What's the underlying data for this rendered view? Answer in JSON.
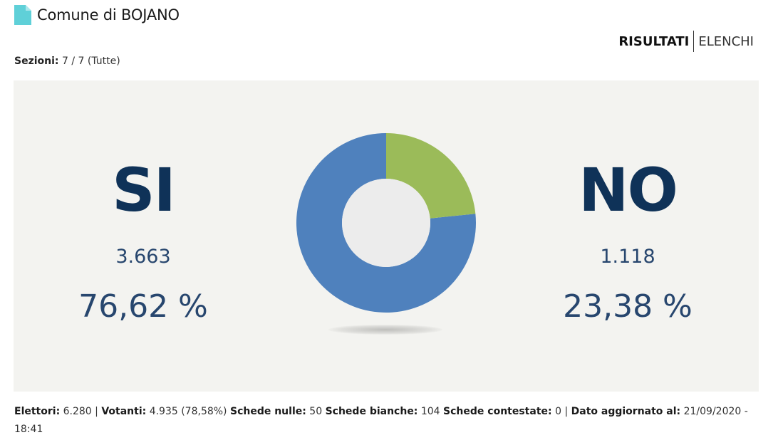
{
  "header": {
    "title": "Comune di BOJANO",
    "icon": "document-icon",
    "icon_color": "#5fd0d8"
  },
  "tabs": {
    "active": "RISULTATI",
    "other": "ELENCHI"
  },
  "sections": {
    "label": "Sezioni:",
    "value": "7 / 7 (Tutte)"
  },
  "results": {
    "yes": {
      "label": "SI",
      "votes": "3.663",
      "percent": "76,62 %"
    },
    "no": {
      "label": "NO",
      "votes": "1.118",
      "percent": "23,38 %"
    }
  },
  "chart_data": {
    "type": "pie",
    "categories": [
      "SI",
      "NO"
    ],
    "values": [
      76.62,
      23.38
    ],
    "colors": [
      "#4f81bd",
      "#9bbb59"
    ],
    "donut": true
  },
  "footer": {
    "elettori_label": "Elettori:",
    "elettori_value": "6.280",
    "votanti_label": "Votanti:",
    "votanti_value": "4.935 (78,58%)",
    "nulle_label": "Schede nulle:",
    "nulle_value": "50",
    "bianche_label": "Schede bianche:",
    "bianche_value": "104",
    "contestate_label": "Schede contestate:",
    "contestate_value": "0",
    "aggiornato_label": "Dato aggiornato al:",
    "aggiornato_value": "21/09/2020 - 18:41"
  }
}
